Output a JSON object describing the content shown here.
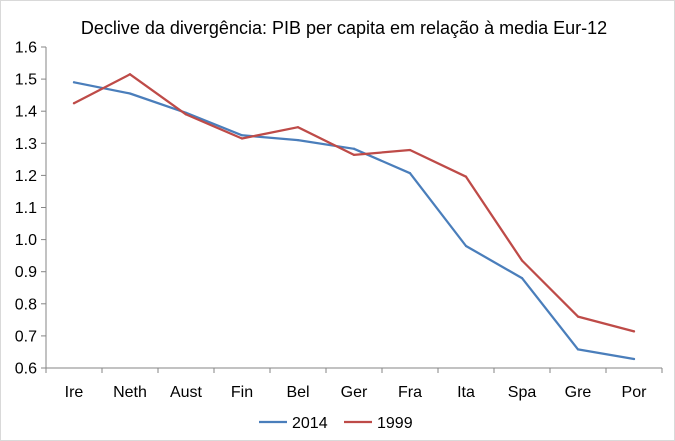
{
  "chart_data": {
    "type": "line",
    "title": "Declive da divergência: PIB per capita em relação à media Eur-12",
    "xlabel": "",
    "ylabel": "",
    "categories": [
      "Ire",
      "Neth",
      "Aust",
      "Fin",
      "Bel",
      "Ger",
      "Fra",
      "Ita",
      "Spa",
      "Gre",
      "Por"
    ],
    "ylim": [
      0.6,
      1.6
    ],
    "yticks": [
      "0.6",
      "0.7",
      "0.8",
      "0.9",
      "1.0",
      "1.1",
      "1.2",
      "1.3",
      "1.4",
      "1.5",
      "1.6"
    ],
    "grid": false,
    "legend_position": "bottom",
    "series": [
      {
        "name": "2014",
        "color": "#4a7ebb",
        "values": [
          1.49,
          1.455,
          1.395,
          1.325,
          1.31,
          1.283,
          1.207,
          0.98,
          0.88,
          0.658,
          0.628
        ]
      },
      {
        "name": "1999",
        "color": "#be4b48",
        "values": [
          1.425,
          1.515,
          1.39,
          1.315,
          1.35,
          1.264,
          1.279,
          1.196,
          0.935,
          0.76,
          0.714
        ]
      }
    ]
  }
}
